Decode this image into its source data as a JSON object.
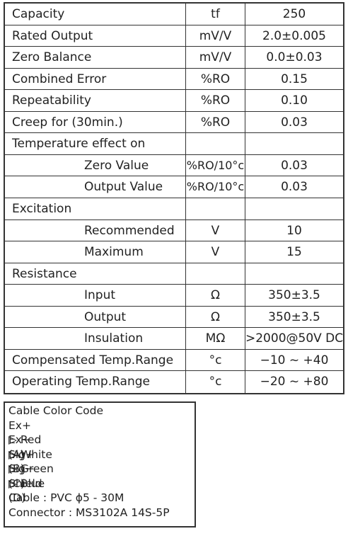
{
  "table": {
    "rows": [
      {
        "label": "Capacity",
        "unit": "tf",
        "value": "250"
      },
      {
        "label": "Rated Output",
        "unit": "mV/V",
        "value": "2.0±0.005"
      },
      {
        "label": "Zero Balance",
        "unit": "mV/V",
        "value": "0.0±0.03"
      },
      {
        "label": "Combined Error",
        "unit": "%RO",
        "value": "0.15"
      },
      {
        "label": "Repeatability",
        "unit": "%RO",
        "value": "0.10"
      },
      {
        "label": "Creep for (30min.)",
        "unit": "%RO",
        "value": "0.03"
      },
      {
        "label": "Temperature effect on",
        "items": [
          {
            "label": "Zero Value",
            "unit": "%RO/10°c",
            "value": "0.03"
          },
          {
            "label": "Output Value",
            "unit": "%RO/10°c",
            "value": "0.03"
          }
        ]
      },
      {
        "label": "Excitation",
        "items": [
          {
            "label": "Recommended",
            "unit": "V",
            "value": "10"
          },
          {
            "label": "Maximum",
            "unit": "V",
            "value": "15"
          }
        ]
      },
      {
        "label": "Resistance",
        "items": [
          {
            "label": "Input",
            "unit": "Ω",
            "value": "350±3.5"
          },
          {
            "label": "Output",
            "unit": "Ω",
            "value": "350±3.5"
          },
          {
            "label": "Insulation",
            "unit": "MΩ",
            "value": ">2000@50V DC"
          }
        ]
      },
      {
        "label": "Compensated Temp.Range",
        "unit": "°c",
        "value": "−10 ~ +40"
      },
      {
        "label": "Operating Temp.Range",
        "unit": "°c",
        "value": "−20 ~ +80"
      }
    ]
  },
  "legend": {
    "title": "Cable Color Code",
    "wires": [
      {
        "pin": "Ex+",
        "color": "▷ Red",
        "code": "(A)"
      },
      {
        "pin": "Ex−",
        "color": "▷ White",
        "code": "(B)"
      },
      {
        "pin": "Sig+",
        "color": "▷ Green",
        "code": "(C)"
      },
      {
        "pin": "Sig−",
        "color": "▷ Blue",
        "code": "(D)"
      },
      {
        "pin": "Shield"
      }
    ],
    "notes": [
      "Cable : PVC ϕ5 - 30M",
      "Connector : MS3102A 14S-5P"
    ]
  }
}
